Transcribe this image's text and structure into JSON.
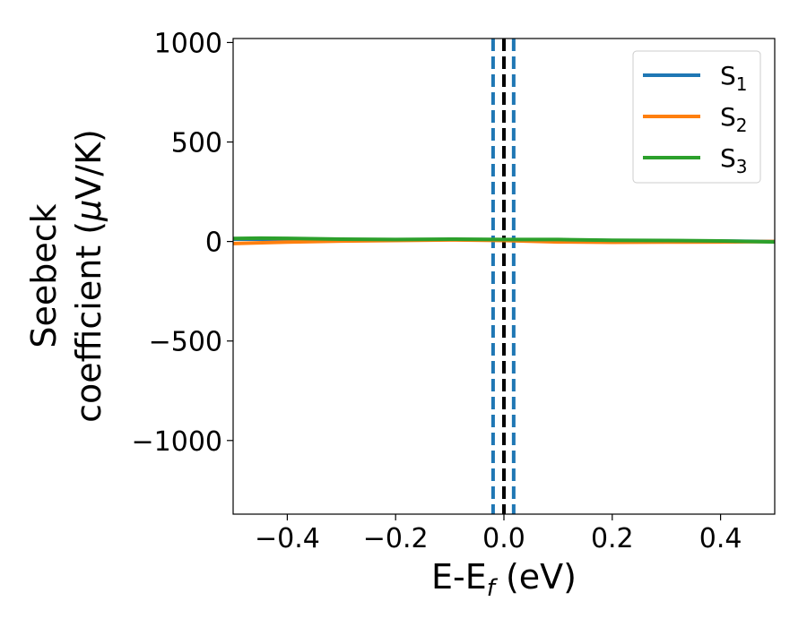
{
  "chart_data": {
    "type": "line",
    "xlabel": {
      "main": "E-E",
      "sub": "f",
      "rest": " (eV)"
    },
    "ylabel": {
      "line1": "Seebeck",
      "line2_prefix": "coefficient  (",
      "mu": "μ",
      "line2_suffix": "V/K)"
    },
    "xlim": [
      -0.5,
      0.5
    ],
    "ylim": [
      -1370,
      1020
    ],
    "xticks": [
      {
        "value": -0.4,
        "label": "−0.4"
      },
      {
        "value": -0.2,
        "label": "−0.2"
      },
      {
        "value": 0.0,
        "label": "0.0"
      },
      {
        "value": 0.2,
        "label": "0.2"
      },
      {
        "value": 0.4,
        "label": "0.4"
      }
    ],
    "yticks": [
      {
        "value": 1000,
        "label": "1000"
      },
      {
        "value": 500,
        "label": "500"
      },
      {
        "value": 0,
        "label": "0"
      },
      {
        "value": -500,
        "label": "−500"
      },
      {
        "value": -1000,
        "label": "−1000"
      }
    ],
    "grid": false,
    "legend_position": "top-right",
    "series": [
      {
        "name": "S",
        "sub": "1",
        "color": "#1f77b4",
        "x": [
          -0.5,
          -0.4,
          -0.3,
          -0.2,
          -0.1,
          0.0,
          0.1,
          0.2,
          0.3,
          0.4,
          0.5
        ],
        "y": [
          12,
          12,
          10,
          8,
          10,
          8,
          7,
          5,
          3,
          2,
          0
        ]
      },
      {
        "name": "S",
        "sub": "2",
        "color": "#ff7f0e",
        "x": [
          -0.5,
          -0.4,
          -0.3,
          -0.2,
          -0.1,
          0.0,
          0.1,
          0.2,
          0.3,
          0.4,
          0.5
        ],
        "y": [
          -10,
          -3,
          2,
          5,
          8,
          5,
          -2,
          -4,
          -3,
          -2,
          0
        ]
      },
      {
        "name": "S",
        "sub": "3",
        "color": "#2ca02c",
        "x": [
          -0.5,
          -0.45,
          -0.4,
          -0.3,
          -0.2,
          -0.1,
          0.0,
          0.1,
          0.2,
          0.3,
          0.4,
          0.5
        ],
        "y": [
          15,
          17,
          16,
          12,
          10,
          12,
          10,
          10,
          6,
          5,
          3,
          -2
        ]
      }
    ],
    "vertical_lines": [
      {
        "x": 0.0,
        "color": "#000000",
        "style": "dashed"
      },
      {
        "x": -0.02,
        "color": "#1f77b4",
        "style": "dashed"
      },
      {
        "x": 0.018,
        "color": "#1f77b4",
        "style": "dashed"
      }
    ]
  }
}
